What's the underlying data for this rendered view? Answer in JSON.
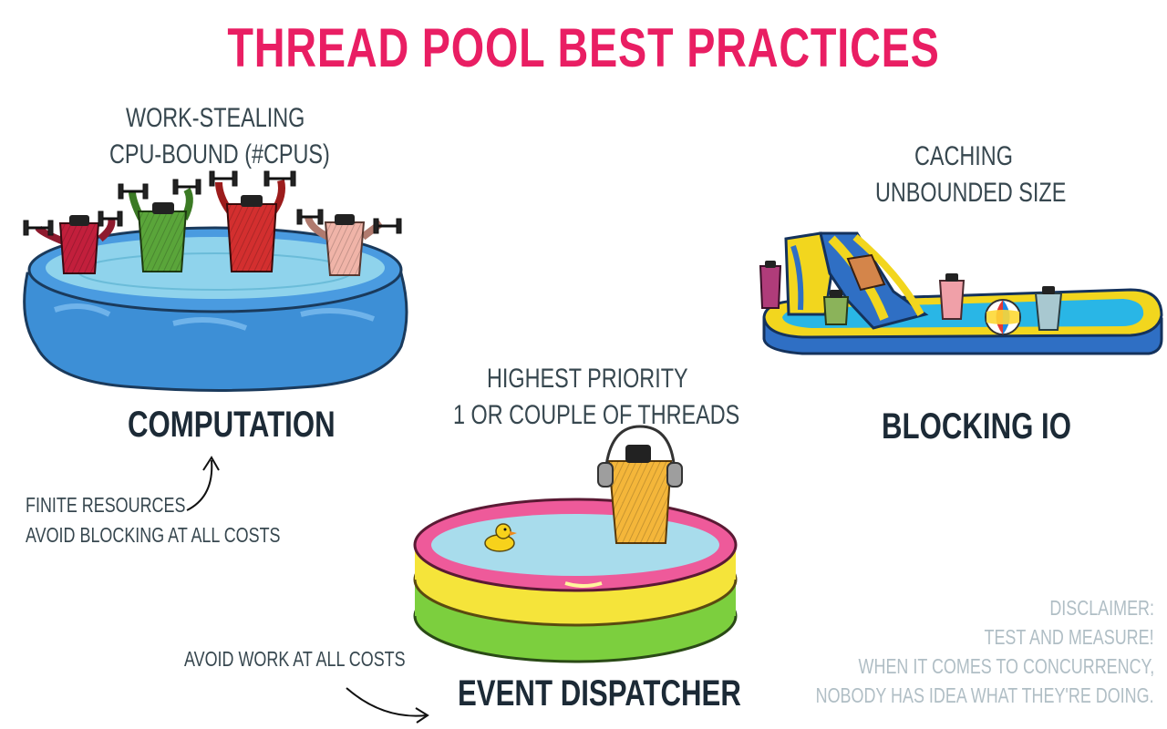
{
  "title": "THREAD POOL BEST PRACTICES",
  "computation": {
    "subtitle_1": "WORK-STEALING",
    "subtitle_2": "CPU-BOUND (#CPUS)",
    "heading": "COMPUTATION",
    "note_1": "FINITE RESOURCES",
    "note_2": "AVOID BLOCKING AT ALL COSTS"
  },
  "blocking_io": {
    "subtitle_1": "CACHING",
    "subtitle_2": "UNBOUNDED SIZE",
    "heading": "BLOCKING IO"
  },
  "event_dispatcher": {
    "subtitle_1": "HIGHEST PRIORITY",
    "subtitle_2": "1 OR COUPLE OF THREADS",
    "heading": "EVENT DISPATCHER",
    "note": "AVOID WORK AT ALL COSTS"
  },
  "disclaimer": {
    "line_1": "DISCLAIMER:",
    "line_2": "TEST AND MEASURE!",
    "line_3": "WHEN IT COMES TO CONCURRENCY,",
    "line_4": "NOBODY HAS IDEA  WHAT THEY'RE DOING."
  },
  "colors": {
    "title": "#e91e63",
    "pool_blue": "#3d8fd6",
    "pool_water": "#8fd3ec",
    "pink_ring": "#ee5a9a",
    "yellow_ring": "#f5e43a",
    "green_ring": "#7ccf3e",
    "slide_yellow": "#f2d61e"
  },
  "icons": [
    "pool-icon",
    "spool-icon",
    "dumbbell-icon",
    "slide-icon",
    "beach-ball-icon",
    "duck-icon",
    "headphones-icon",
    "arrow-icon"
  ]
}
